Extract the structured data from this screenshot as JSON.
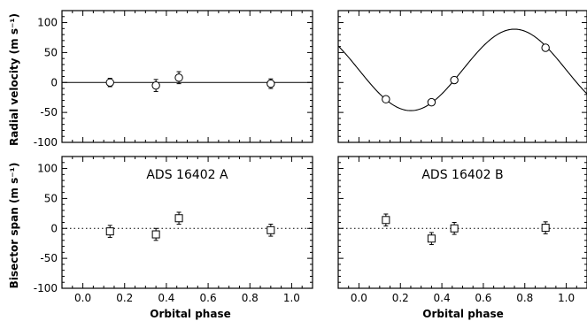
{
  "figure": {
    "ylabel_top": "Radial velocity (m s⁻¹)",
    "ylabel_bottom": "Bisector span (m s⁻¹)",
    "xlabel": "Orbital phase"
  },
  "chart_data": [
    {
      "panel": "top-left",
      "type": "scatter",
      "title": "",
      "xlabel": "",
      "ylabel": "Radial velocity (m s⁻¹)",
      "xlim": [
        -0.1,
        1.1
      ],
      "ylim": [
        -100,
        120
      ],
      "xticks": [
        0.0,
        0.2,
        0.4,
        0.6,
        0.8,
        1.0
      ],
      "yticks": [
        -100,
        -50,
        0,
        50,
        100
      ],
      "show_xtick_labels": false,
      "show_ytick_labels": true,
      "marker": "circle",
      "points": [
        {
          "x": 0.13,
          "y": 0,
          "err": 7
        },
        {
          "x": 0.35,
          "y": -5,
          "err": 10
        },
        {
          "x": 0.46,
          "y": 8,
          "err": 10
        },
        {
          "x": 0.9,
          "y": -2,
          "err": 8
        }
      ],
      "model": {
        "kind": "constant",
        "value": 0,
        "style": "solid"
      }
    },
    {
      "panel": "top-right",
      "type": "scatter",
      "title": "",
      "xlabel": "",
      "ylabel": "",
      "xlim": [
        -0.1,
        1.1
      ],
      "ylim": [
        -100,
        120
      ],
      "xticks": [
        0.0,
        0.2,
        0.4,
        0.6,
        0.8,
        1.0
      ],
      "yticks": [
        -100,
        -50,
        0,
        50,
        100
      ],
      "show_xtick_labels": false,
      "show_ytick_labels": false,
      "marker": "circle",
      "points": [
        {
          "x": 0.13,
          "y": -28,
          "err": 4
        },
        {
          "x": 0.35,
          "y": -33,
          "err": 4
        },
        {
          "x": 0.46,
          "y": 4,
          "err": 4
        },
        {
          "x": 0.9,
          "y": 58,
          "err": 4
        }
      ],
      "model": {
        "kind": "sine",
        "offset": 21,
        "amplitude": 68,
        "phase_of_max": 0.75,
        "style": "solid"
      }
    },
    {
      "panel": "bottom-left",
      "type": "scatter",
      "title": "ADS 16402 A",
      "xlabel": "Orbital phase",
      "ylabel": "Bisector span (m s⁻¹)",
      "xlim": [
        -0.1,
        1.1
      ],
      "ylim": [
        -100,
        120
      ],
      "xticks": [
        0.0,
        0.2,
        0.4,
        0.6,
        0.8,
        1.0
      ],
      "yticks": [
        -100,
        -50,
        0,
        50,
        100
      ],
      "show_xtick_labels": true,
      "show_ytick_labels": true,
      "marker": "square",
      "points": [
        {
          "x": 0.13,
          "y": -5,
          "err": 10
        },
        {
          "x": 0.35,
          "y": -10,
          "err": 10
        },
        {
          "x": 0.46,
          "y": 17,
          "err": 10
        },
        {
          "x": 0.9,
          "y": -3,
          "err": 10
        }
      ],
      "model": {
        "kind": "constant",
        "value": 0,
        "style": "dotted"
      }
    },
    {
      "panel": "bottom-right",
      "type": "scatter",
      "title": "ADS 16402 B",
      "xlabel": "Orbital phase",
      "ylabel": "",
      "xlim": [
        -0.1,
        1.1
      ],
      "ylim": [
        -100,
        120
      ],
      "xticks": [
        0.0,
        0.2,
        0.4,
        0.6,
        0.8,
        1.0
      ],
      "yticks": [
        -100,
        -50,
        0,
        50,
        100
      ],
      "show_xtick_labels": true,
      "show_ytick_labels": false,
      "marker": "square",
      "points": [
        {
          "x": 0.13,
          "y": 14,
          "err": 10
        },
        {
          "x": 0.35,
          "y": -17,
          "err": 10
        },
        {
          "x": 0.46,
          "y": 0,
          "err": 10
        },
        {
          "x": 0.9,
          "y": 1,
          "err": 10
        }
      ],
      "model": {
        "kind": "constant",
        "value": 0,
        "style": "dotted"
      }
    }
  ]
}
